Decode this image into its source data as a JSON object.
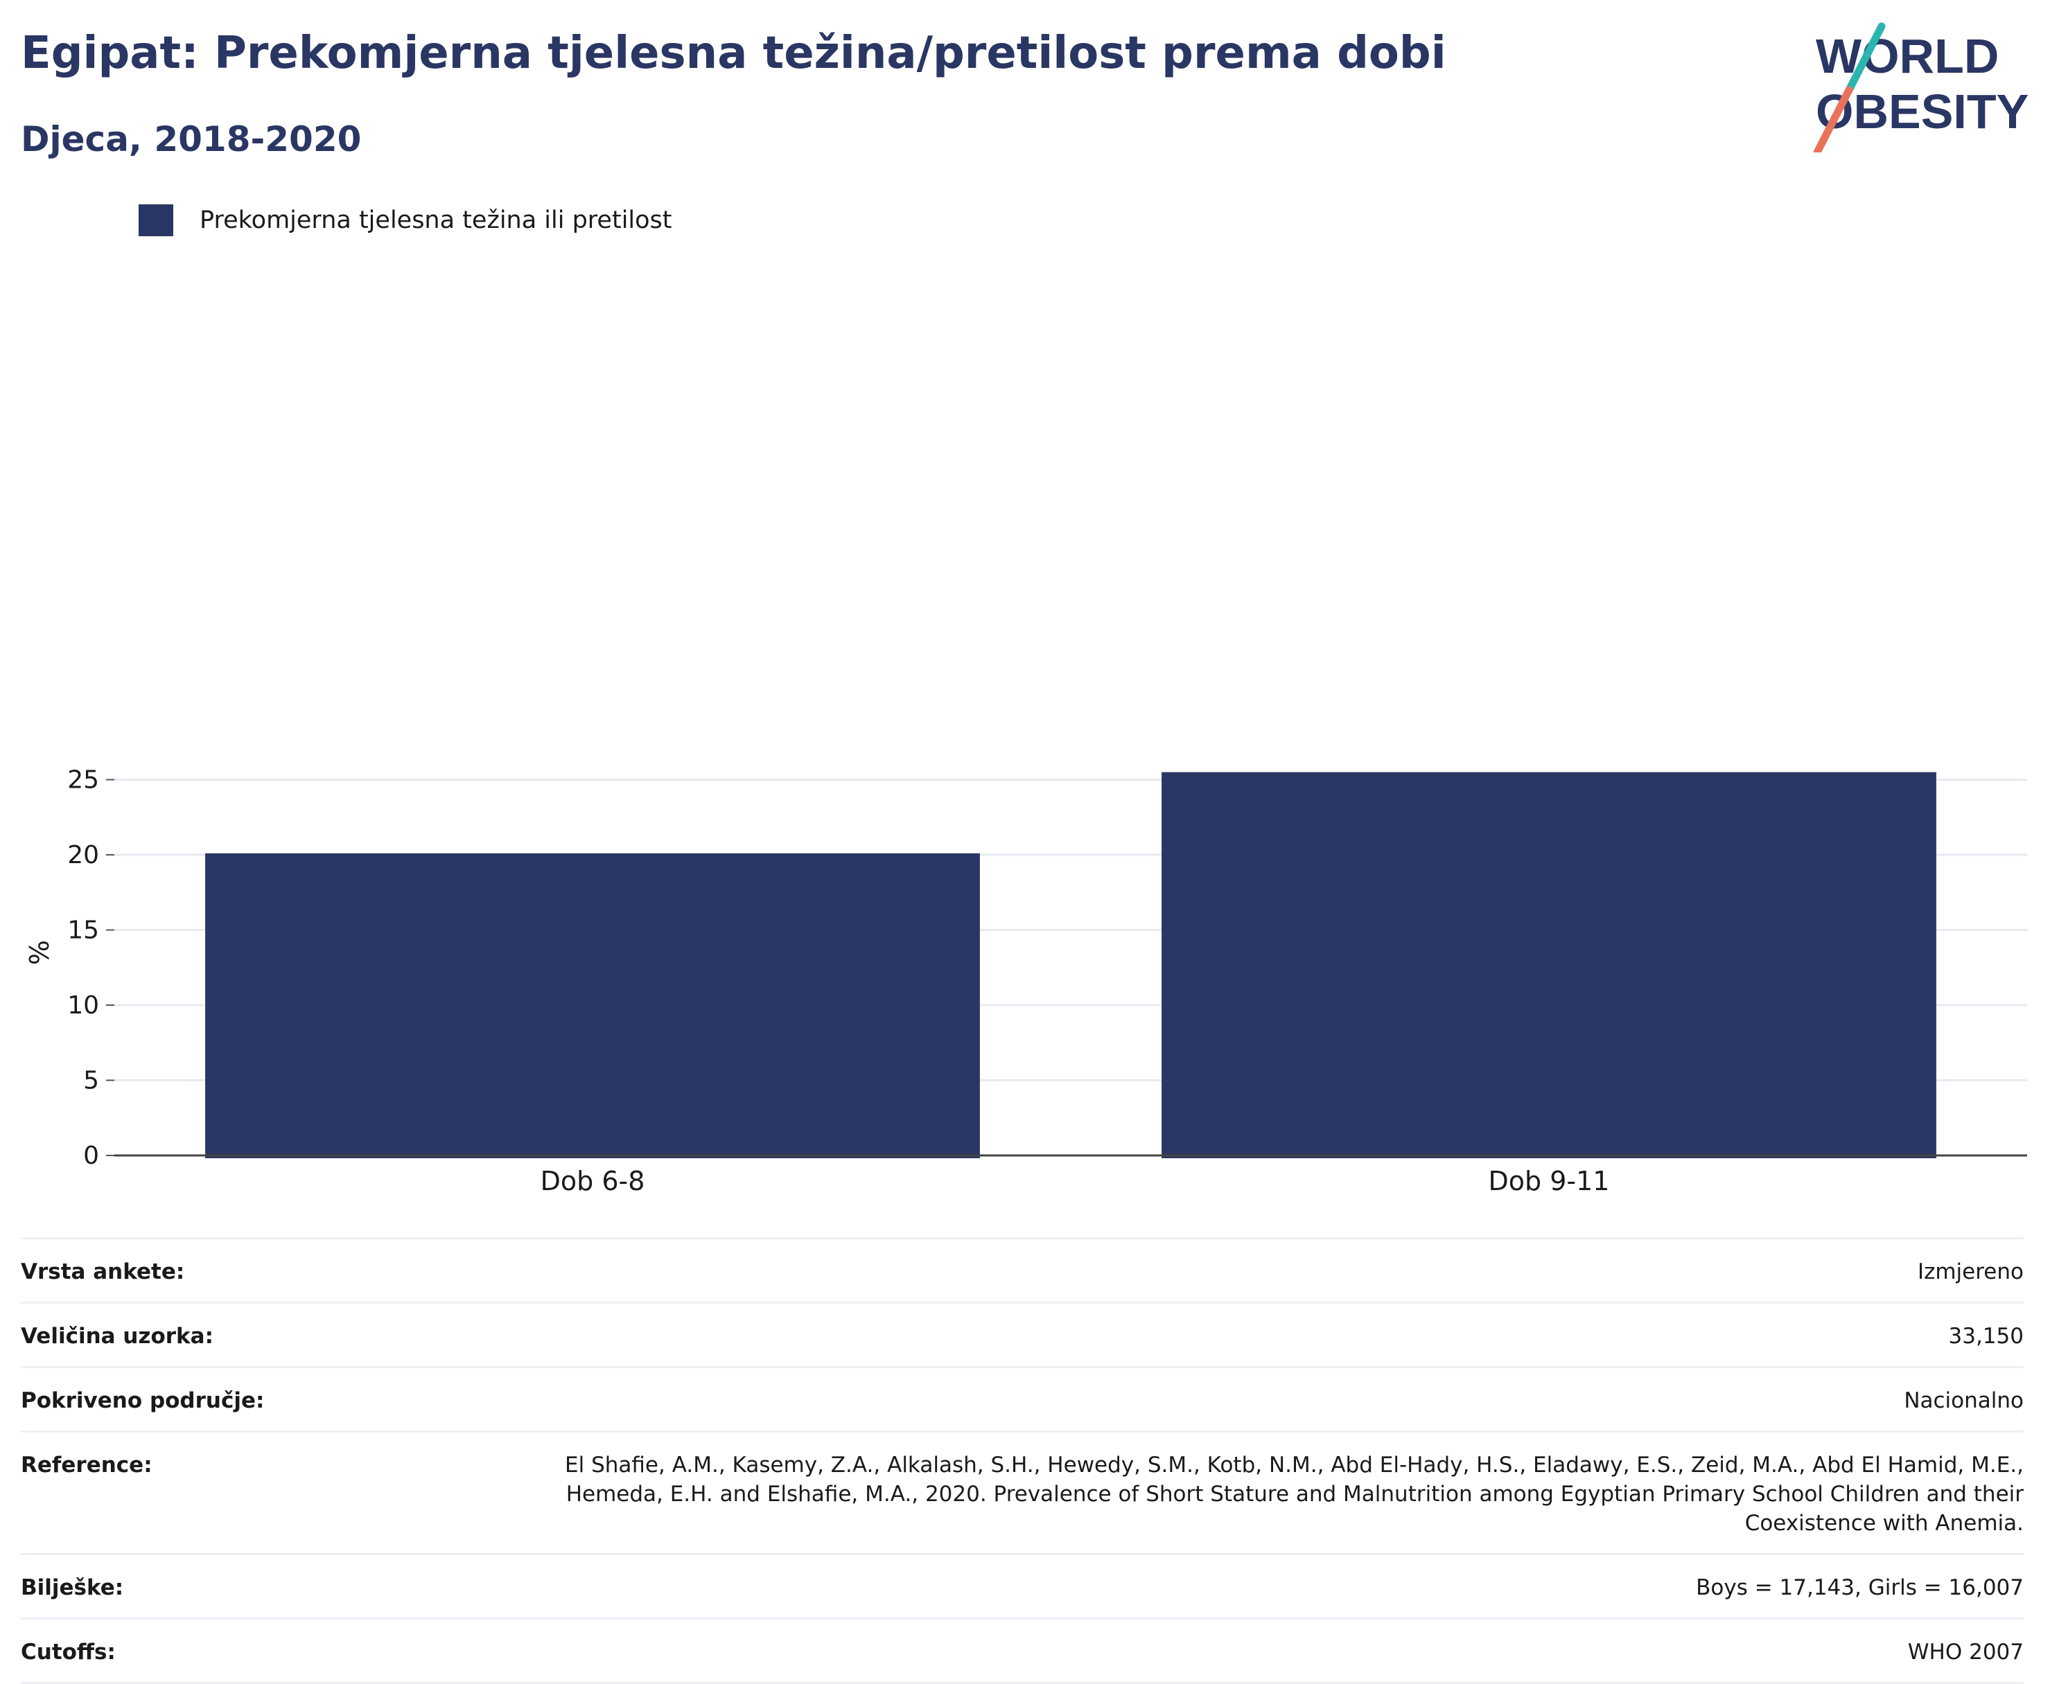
{
  "header": {
    "title": "Egipat: Prekomjerna tjelesna težina/pretilost prema dobi",
    "subtitle": "Djeca, 2018-2020"
  },
  "logo": {
    "line1": "WORLD",
    "line2": "OBESITY"
  },
  "legend": {
    "label": "Prekomjerna tjelesna težina ili pretilost",
    "color": "#2a3663"
  },
  "chart_data": {
    "type": "bar",
    "categories": [
      "Dob 6-8",
      "Dob 9-11"
    ],
    "series": [
      {
        "name": "Prekomjerna tjelesna težina ili pretilost",
        "values": [
          20.1,
          25.5
        ],
        "color": "#2a3663"
      }
    ],
    "ylabel": "%",
    "xlabel": "",
    "ylim": [
      0,
      27
    ],
    "yticks": [
      0,
      5,
      10,
      15,
      20,
      25
    ],
    "grid": true
  },
  "info": [
    {
      "label": "Vrsta ankete:",
      "value": "Izmjereno"
    },
    {
      "label": "Veličina uzorka:",
      "value": "33,150"
    },
    {
      "label": "Pokriveno područje:",
      "value": "Nacionalno"
    },
    {
      "label": "Reference:",
      "value": "El Shafie, A.M., Kasemy, Z.A., Alkalash, S.H., Hewedy, S.M., Kotb, N.M., Abd El-Hady, H.S., Eladawy, E.S., Zeid, M.A., Abd El Hamid, M.E., Hemeda, E.H. and Elshafie, M.A., 2020. Prevalence of Short Stature and Malnutrition among Egyptian Primary School Children and their Coexistence with Anemia."
    },
    {
      "label": "Bilješke:",
      "value": "Boys = 17,143, Girls = 16,007"
    },
    {
      "label": "Cutoffs:",
      "value": "WHO 2007"
    }
  ]
}
